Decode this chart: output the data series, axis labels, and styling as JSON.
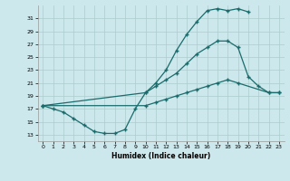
{
  "xlabel": "Humidex (Indice chaleur)",
  "bg_color": "#cce8ec",
  "grid_color": "#aacccc",
  "line_color": "#1a6b6b",
  "xlim": [
    -0.5,
    23.5
  ],
  "ylim": [
    12,
    33
  ],
  "xticks": [
    0,
    1,
    2,
    3,
    4,
    5,
    6,
    7,
    8,
    9,
    10,
    11,
    12,
    13,
    14,
    15,
    16,
    17,
    18,
    19,
    20,
    21,
    22,
    23
  ],
  "yticks": [
    13,
    15,
    17,
    19,
    21,
    23,
    25,
    27,
    29,
    31
  ],
  "line1_x": [
    0,
    1,
    2,
    3,
    4,
    5,
    6,
    7,
    8,
    9,
    10,
    11,
    12,
    13,
    14,
    15,
    16,
    17,
    18,
    19,
    20
  ],
  "line1_y": [
    17.5,
    17.0,
    16.5,
    15.5,
    14.5,
    13.5,
    13.2,
    13.2,
    13.8,
    17.0,
    19.5,
    21.0,
    23.0,
    26.0,
    28.5,
    30.5,
    32.2,
    32.5,
    32.2,
    32.5,
    32.0
  ],
  "line2_x": [
    0,
    10,
    11,
    12,
    13,
    14,
    15,
    16,
    17,
    18,
    19,
    20,
    21,
    22,
    23
  ],
  "line2_y": [
    17.5,
    19.5,
    20.5,
    21.5,
    22.5,
    24.0,
    25.5,
    26.5,
    27.5,
    27.5,
    26.5,
    22.0,
    20.5,
    19.5,
    19.5
  ],
  "line3_x": [
    0,
    10,
    11,
    12,
    13,
    14,
    15,
    16,
    17,
    18,
    19,
    22,
    23
  ],
  "line3_y": [
    17.5,
    17.5,
    18.0,
    18.5,
    19.0,
    19.5,
    20.0,
    20.5,
    21.0,
    21.5,
    21.0,
    19.5,
    19.5
  ]
}
